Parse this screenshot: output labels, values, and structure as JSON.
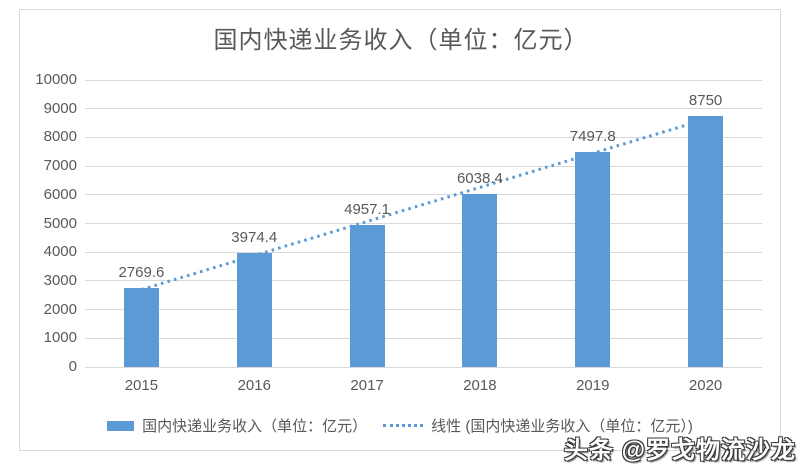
{
  "chart_data": {
    "type": "bar",
    "title": "国内快递业务收入（单位：亿元）",
    "categories": [
      "2015",
      "2016",
      "2017",
      "2018",
      "2019",
      "2020"
    ],
    "values": [
      2769.6,
      3974.4,
      4957.1,
      6038.4,
      7497.8,
      8750
    ],
    "data_labels": [
      "2769.6",
      "3974.4",
      "4957.1",
      "6038.4",
      "7497.8",
      "8750"
    ],
    "xlabel": "",
    "ylabel": "",
    "ylim": [
      0,
      10000
    ],
    "ytick_step": 1000,
    "ytick_labels": [
      "0",
      "1000",
      "2000",
      "3000",
      "4000",
      "5000",
      "6000",
      "7000",
      "8000",
      "9000",
      "10000"
    ],
    "grid": true,
    "legend_position": "bottom",
    "trendline": {
      "type": "linear",
      "style": "dotted"
    }
  },
  "legend": {
    "series_label": "国内快递业务收入（单位：亿元）",
    "trend_label": "线性 (国内快递业务收入（单位：亿元）)"
  },
  "watermark": {
    "text": "头条 @罗戈物流沙龙"
  },
  "colors": {
    "bar": "#5b9bd5",
    "trendline": "#5b9bd5",
    "gridline": "#d9d9d9",
    "text": "#595959",
    "frame_border": "#d9d9d9"
  }
}
